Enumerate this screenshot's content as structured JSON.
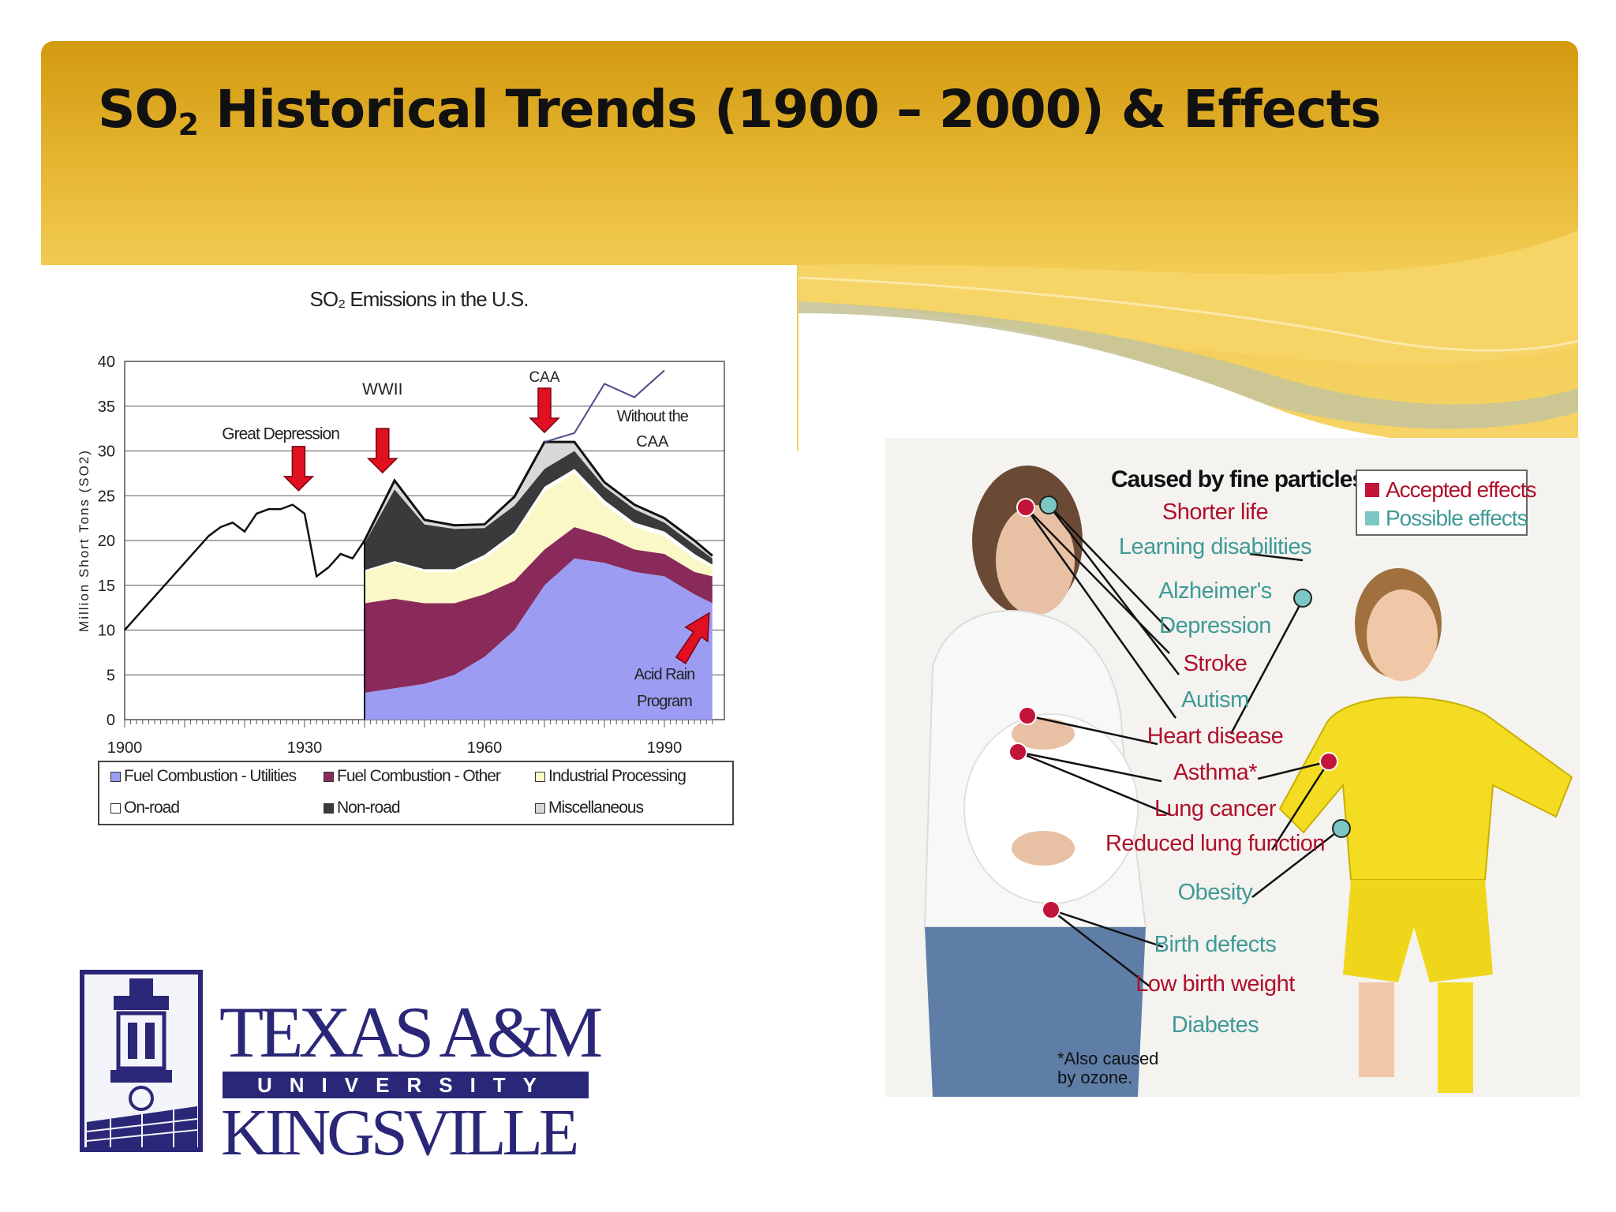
{
  "slide": {
    "title_main": "SO",
    "title_sub": "2",
    "title_rest": " Historical Trends (1900 – 2000) & Effects"
  },
  "colors": {
    "banner_dark": "#d29a0f",
    "banner_light": "#f6d466",
    "wave_green": "#c6c49a",
    "logo_blue": "#2b2778",
    "accepted_red": "#b0102a",
    "possible_teal": "#3f9a96"
  },
  "chart_data": {
    "type": "area",
    "title": "SO₂ Emissions in the U.S.",
    "ylabel": "Million Short Tons (SO2)",
    "xlabel": "",
    "xlim": [
      1900,
      2000
    ],
    "ylim": [
      0,
      40
    ],
    "x_ticks": [
      1900,
      1930,
      1960,
      1990
    ],
    "y_ticks": [
      0,
      5,
      10,
      15,
      20,
      25,
      30,
      35,
      40
    ],
    "grid": "horizontal",
    "legend_position": "bottom",
    "total_pre1940": {
      "x": [
        1900,
        1902,
        1904,
        1906,
        1908,
        1910,
        1912,
        1914,
        1916,
        1918,
        1920,
        1922,
        1924,
        1926,
        1928,
        1930,
        1932,
        1934,
        1936,
        1938,
        1940
      ],
      "y": [
        10,
        11.5,
        13,
        14.5,
        16,
        17.5,
        19,
        20.5,
        21.5,
        22,
        21,
        23,
        23.5,
        23.5,
        24,
        23,
        16,
        17,
        18.5,
        18,
        20
      ]
    },
    "series": [
      {
        "name": "Fuel Combustion - Utilities",
        "color": "#9c9cf2",
        "x": [
          1940,
          1945,
          1950,
          1955,
          1960,
          1965,
          1970,
          1975,
          1980,
          1985,
          1990,
          1995,
          1998
        ],
        "y": [
          3,
          3.5,
          4,
          5,
          7,
          10,
          15,
          18,
          17.5,
          16.5,
          16,
          14,
          13
        ]
      },
      {
        "name": "Fuel Combustion - Other",
        "color": "#8a2a5a",
        "x": [
          1940,
          1945,
          1950,
          1955,
          1960,
          1965,
          1970,
          1975,
          1980,
          1985,
          1990,
          1995,
          1998
        ],
        "y": [
          10,
          10,
          9,
          8,
          7,
          5.5,
          4,
          3.5,
          3,
          2.5,
          2.5,
          2.5,
          3
        ]
      },
      {
        "name": "Industrial Processing",
        "color": "#fbf8c8",
        "x": [
          1940,
          1945,
          1950,
          1955,
          1960,
          1965,
          1970,
          1975,
          1980,
          1985,
          1990,
          1995,
          1998
        ],
        "y": [
          3.5,
          4,
          3.5,
          3.5,
          4,
          5,
          6.5,
          6,
          3.5,
          2.5,
          2,
          1.5,
          1
        ]
      },
      {
        "name": "On-road",
        "color": "#ffffff",
        "x": [
          1940,
          1945,
          1950,
          1955,
          1960,
          1965,
          1970,
          1975,
          1980,
          1985,
          1990,
          1995,
          1998
        ],
        "y": [
          0.2,
          0.2,
          0.3,
          0.3,
          0.4,
          0.4,
          0.5,
          0.5,
          0.5,
          0.5,
          0.5,
          0.5,
          0.3
        ]
      },
      {
        "name": "Non-road",
        "color": "#3a3a3a",
        "x": [
          1940,
          1945,
          1950,
          1955,
          1960,
          1965,
          1970,
          1975,
          1980,
          1985,
          1990,
          1995,
          1998
        ],
        "y": [
          3,
          8,
          5,
          4.5,
          3,
          3,
          2,
          2,
          1.5,
          1.5,
          1,
          1,
          0.7
        ]
      },
      {
        "name": "Miscellaneous",
        "color": "#d8d8d8",
        "x": [
          1940,
          1945,
          1950,
          1955,
          1960,
          1965,
          1970,
          1975,
          1980,
          1985,
          1990,
          1995,
          1998
        ],
        "y": [
          0.3,
          1,
          0.5,
          0.4,
          0.4,
          1,
          3,
          1,
          0.5,
          0.5,
          0.5,
          0.5,
          0.3
        ]
      }
    ],
    "without_caa": {
      "x": [
        1970,
        1975,
        1980,
        1985,
        1990
      ],
      "y": [
        31,
        32,
        37.5,
        36,
        39
      ]
    },
    "annotations": [
      {
        "label": "Great Depression",
        "x": 1929
      },
      {
        "label": "WWII",
        "x": 1943
      },
      {
        "label": "CAA",
        "x": 1970
      },
      {
        "label": "Without the CAA",
        "x": 1988
      },
      {
        "label": "Acid Rain Program",
        "x": 1995
      }
    ]
  },
  "legend": {
    "utilities": "Fuel Combustion - Utilities",
    "other": "Fuel Combustion - Other",
    "industrial": "Industrial Processing",
    "onroad": "On-road",
    "nonroad": "Non-road",
    "misc": "Miscellaneous"
  },
  "effects": {
    "header": "Caused by fine particles:",
    "legend_accepted": "Accepted effects",
    "legend_possible": "Possible effects",
    "items": [
      {
        "label": "Shorter life",
        "type": "accepted"
      },
      {
        "label": "Learning disabilities",
        "type": "possible"
      },
      {
        "label": "Alzheimer's",
        "type": "possible"
      },
      {
        "label": "Depression",
        "type": "possible"
      },
      {
        "label": "Stroke",
        "type": "accepted"
      },
      {
        "label": "Autism",
        "type": "possible"
      },
      {
        "label": "Heart disease",
        "type": "accepted"
      },
      {
        "label": "Asthma*",
        "type": "accepted"
      },
      {
        "label": "Lung cancer",
        "type": "accepted"
      },
      {
        "label": "Reduced lung function",
        "type": "accepted"
      },
      {
        "label": "Obesity",
        "type": "possible"
      },
      {
        "label": "Birth defects",
        "type": "possible"
      },
      {
        "label": "Low birth weight",
        "type": "accepted"
      },
      {
        "label": "Diabetes",
        "type": "possible"
      }
    ],
    "note_line1": "*Also caused",
    "note_line2": "by ozone."
  },
  "logo": {
    "line1": "TEXAS A&M",
    "university": "UNIVERSITY",
    "line2": "KINGSVILLE"
  }
}
